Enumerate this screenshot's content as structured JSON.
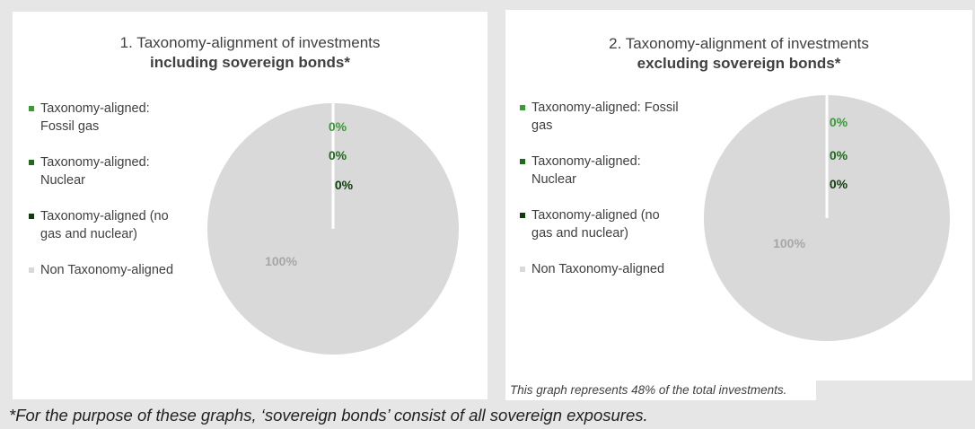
{
  "chart_data": [
    {
      "type": "pie",
      "title_line1": "1. Taxonomy-alignment of investments",
      "title_line2": "including sovereign bonds*",
      "labels": [
        "Taxonomy-aligned: Fossil gas",
        "Taxonomy-aligned: Nuclear",
        "Taxonomy-aligned (no gas and nuclear)",
        "Non Taxonomy-aligned"
      ],
      "legend_lines": [
        [
          "Taxonomy-aligned:",
          "Fossil gas"
        ],
        [
          "Taxonomy-aligned:",
          "Nuclear"
        ],
        [
          "Taxonomy-aligned (no",
          "gas and nuclear)"
        ],
        [
          "Non Taxonomy-aligned"
        ]
      ],
      "values": [
        0,
        0,
        0,
        100
      ],
      "data_labels": [
        "0%",
        "0%",
        "0%",
        "100%"
      ],
      "colors": [
        "#3a9a37",
        "#1e6b1c",
        "#0f3d0e",
        "#d9d9d9"
      ],
      "legend_position": "left"
    },
    {
      "type": "pie",
      "title_line1": "2. Taxonomy-alignment of investments",
      "title_line2": "excluding sovereign bonds*",
      "labels": [
        "Taxonomy-aligned: Fossil gas",
        "Taxonomy-aligned: Nuclear",
        "Taxonomy-aligned (no gas and nuclear)",
        "Non Taxonomy-aligned"
      ],
      "legend_lines": [
        [
          "Taxonomy-aligned: Fossil",
          "gas"
        ],
        [
          "Taxonomy-aligned:",
          "Nuclear"
        ],
        [
          "Taxonomy-aligned (no",
          "gas and nuclear)"
        ],
        [
          "Non Taxonomy-aligned"
        ]
      ],
      "values": [
        0,
        0,
        0,
        100
      ],
      "data_labels": [
        "0%",
        "0%",
        "0%",
        "100%"
      ],
      "colors": [
        "#3a9a37",
        "#1e6b1c",
        "#0f3d0e",
        "#d9d9d9"
      ],
      "legend_position": "left"
    }
  ],
  "note": "This graph represents  48% of the total investments.",
  "footnote": "*For the purpose of these graphs, ‘sovereign bonds’ consist of all sovereign exposures."
}
